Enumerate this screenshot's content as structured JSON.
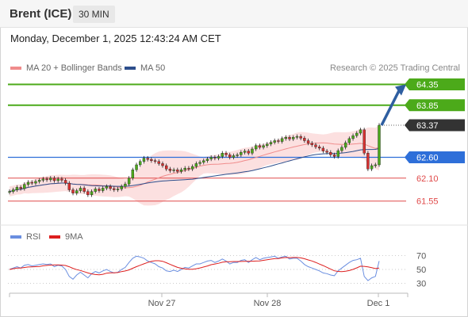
{
  "header": {
    "instrument": "Brent (ICE)",
    "timeframe": "30 MIN"
  },
  "timestamp": "Monday, December 1, 2025 12:43:24 AM CET",
  "legend": {
    "ma20": "MA 20 + Bollinger Bands",
    "ma50": "MA 50",
    "rsi": "RSI",
    "ma9": "9MA",
    "credit": "Research © 2025 Trading Central"
  },
  "colors": {
    "ma20": "#f08c8c",
    "ma50": "#2d4e8c",
    "rsi": "#6a8ee0",
    "ma9": "#dd1f1f",
    "green": "#4caa1a",
    "blue": "#2e6fd9",
    "red": "#e04a4a"
  },
  "chart_data": {
    "type": "line",
    "price_ylim": [
      61.05,
      64.55
    ],
    "levels": [
      {
        "label": "64.35",
        "value": 64.35,
        "kind": "resistance"
      },
      {
        "label": "63.85",
        "value": 63.85,
        "kind": "resistance"
      },
      {
        "label": "63.37",
        "value": 63.37,
        "kind": "last"
      },
      {
        "label": "62.60",
        "value": 62.6,
        "kind": "pivot"
      },
      {
        "label": "62.10",
        "value": 62.1,
        "kind": "support"
      },
      {
        "label": "61.55",
        "value": 61.55,
        "kind": "support"
      }
    ],
    "x_ticks": [
      "Nov 27",
      "Nov 28",
      "Dec 1"
    ],
    "close": [
      61.78,
      61.82,
      61.88,
      61.85,
      61.95,
      62.0,
      61.98,
      62.02,
      62.05,
      62.08,
      62.06,
      62.1,
      62.04,
      62.08,
      62.05,
      61.98,
      61.82,
      61.74,
      61.8,
      61.86,
      61.78,
      61.7,
      61.78,
      61.84,
      61.8,
      61.86,
      61.9,
      61.85,
      61.82,
      61.84,
      61.9,
      61.96,
      62.1,
      62.3,
      62.42,
      62.5,
      62.58,
      62.55,
      62.52,
      62.5,
      62.45,
      62.4,
      62.32,
      62.28,
      62.3,
      62.26,
      62.3,
      62.34,
      62.32,
      62.38,
      62.45,
      62.48,
      62.52,
      62.56,
      62.6,
      62.58,
      62.62,
      62.7,
      62.66,
      62.6,
      62.64,
      62.66,
      62.72,
      62.75,
      62.7,
      62.8,
      62.88,
      62.84,
      62.88,
      62.92,
      62.96,
      63.0,
      62.98,
      63.05,
      63.08,
      63.04,
      63.08,
      63.1,
      63.06,
      63.0,
      62.94,
      62.9,
      62.85,
      62.82,
      62.75,
      62.72,
      62.66,
      62.62,
      62.76,
      62.84,
      62.95,
      63.05,
      63.12,
      63.18,
      63.26,
      62.7,
      62.32,
      62.4,
      62.42,
      63.37
    ],
    "rsi": {
      "ylim": [
        25,
        75
      ],
      "ticks": [
        70,
        50,
        30
      ],
      "values": [
        50,
        52,
        54,
        52,
        56,
        57,
        55,
        56,
        57,
        58,
        57,
        58,
        54,
        56,
        55,
        50,
        40,
        36,
        42,
        46,
        42,
        38,
        44,
        47,
        45,
        48,
        50,
        47,
        45,
        46,
        50,
        53,
        60,
        66,
        69,
        68,
        66,
        62,
        60,
        58,
        54,
        52,
        48,
        47,
        49,
        47,
        50,
        53,
        52,
        55,
        58,
        58,
        60,
        62,
        63,
        60,
        62,
        65,
        62,
        58,
        60,
        60,
        63,
        64,
        60,
        64,
        67,
        64,
        66,
        67,
        68,
        69,
        66,
        68,
        69,
        65,
        66,
        66,
        62,
        57,
        54,
        52,
        50,
        48,
        45,
        44,
        42,
        41,
        48,
        52,
        56,
        60,
        63,
        64,
        66,
        40,
        34,
        38,
        40,
        62
      ]
    }
  }
}
